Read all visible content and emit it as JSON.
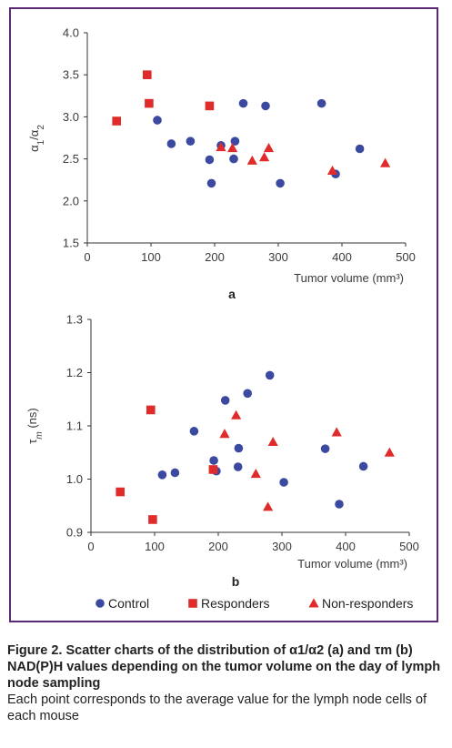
{
  "colors": {
    "control": "#3b4aa0",
    "responders": "#e02b2b",
    "nonresponders": "#e02b2b",
    "frame": "#5b2a72"
  },
  "legend": {
    "control": "Control",
    "responders": "Responders",
    "nonresponders": "Non-responders"
  },
  "caption": {
    "title": "Figure 2. Scatter charts of the distribution of α1/α2 (a) and τm (b) NAD(P)H values depending on the tumor volume on the day of lymph node sampling",
    "note": "Each point corresponds to the average value for the lymph node cells of each mouse"
  },
  "chart_data": [
    {
      "type": "scatter",
      "panel_label": "a",
      "xlabel": "Tumor volume (mm³)",
      "ylabel": "α1/α2",
      "xlim": [
        0,
        500
      ],
      "ylim": [
        1.5,
        4.0
      ],
      "xticks": [
        "0",
        "100",
        "200",
        "300",
        "400",
        "500"
      ],
      "yticks": [
        "1.5",
        "2.0",
        "2.5",
        "3.0",
        "3.5",
        "4.0"
      ],
      "grid": false,
      "series": [
        {
          "name": "Control",
          "marker": "circle",
          "x": [
            110,
            132,
            162,
            192,
            195,
            210,
            230,
            232,
            245,
            280,
            303,
            368,
            390,
            428
          ],
          "y": [
            2.96,
            2.68,
            2.71,
            2.49,
            2.21,
            2.66,
            2.5,
            2.71,
            3.16,
            3.13,
            2.21,
            3.16,
            2.32,
            2.62
          ]
        },
        {
          "name": "Responders",
          "marker": "square",
          "x": [
            46,
            94,
            97,
            192
          ],
          "y": [
            2.95,
            3.5,
            3.16,
            3.13
          ]
        },
        {
          "name": "Non-responders",
          "marker": "triangle",
          "x": [
            210,
            228,
            259,
            278,
            285,
            385,
            468
          ],
          "y": [
            2.64,
            2.63,
            2.48,
            2.52,
            2.63,
            2.36,
            2.45
          ]
        }
      ]
    },
    {
      "type": "scatter",
      "panel_label": "b",
      "xlabel": "Tumor volume (mm³)",
      "ylabel": "τm (ns)",
      "xlim": [
        0,
        500
      ],
      "ylim": [
        0.9,
        1.3
      ],
      "xticks": [
        "0",
        "100",
        "200",
        "300",
        "400",
        "500"
      ],
      "yticks": [
        "0.9",
        "1.0",
        "1.1",
        "1.2",
        "1.3"
      ],
      "grid": false,
      "series": [
        {
          "name": "Control",
          "marker": "circle",
          "x": [
            112,
            132,
            162,
            193,
            197,
            211,
            231,
            232,
            246,
            281,
            303,
            368,
            390,
            428
          ],
          "y": [
            1.008,
            1.012,
            1.09,
            1.035,
            1.015,
            1.148,
            1.023,
            1.058,
            1.161,
            1.195,
            0.994,
            1.057,
            0.953,
            1.024
          ]
        },
        {
          "name": "Responders",
          "marker": "square",
          "x": [
            46,
            94,
            97,
            192
          ],
          "y": [
            0.976,
            1.13,
            0.924,
            1.018
          ]
        },
        {
          "name": "Non-responders",
          "marker": "triangle",
          "x": [
            210,
            228,
            259,
            278,
            286,
            386,
            469
          ],
          "y": [
            1.085,
            1.12,
            1.01,
            0.948,
            1.07,
            1.088,
            1.05
          ]
        }
      ]
    }
  ]
}
